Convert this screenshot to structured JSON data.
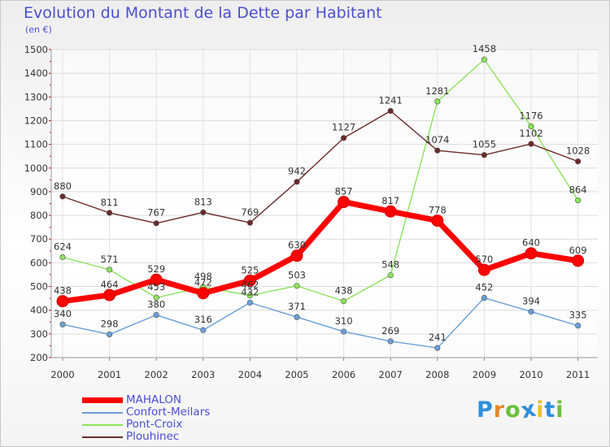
{
  "chart_data": {
    "type": "line",
    "title": "Evolution du Montant de la Dette par Habitant",
    "subtitle": "(en €)",
    "x": [
      "2000",
      "2001",
      "2002",
      "2003",
      "2004",
      "2005",
      "2006",
      "2007",
      "2008",
      "2009",
      "2010",
      "2011"
    ],
    "ylim": [
      200,
      1500
    ],
    "yticks": [
      200,
      300,
      400,
      500,
      600,
      700,
      800,
      900,
      1000,
      1100,
      1200,
      1300,
      1400,
      1500
    ],
    "grid": true,
    "legend": "bottom-left",
    "series": [
      {
        "name": "MAHALON",
        "color": "#ff0000",
        "values": [
          438,
          464,
          529,
          472,
          525,
          630,
          857,
          817,
          778,
          570,
          640,
          609
        ]
      },
      {
        "name": "Confort-Meilars",
        "color": "#6a9fd6",
        "values": [
          340,
          298,
          380,
          316,
          432,
          371,
          310,
          269,
          241,
          452,
          394,
          335
        ]
      },
      {
        "name": "Pont-Croix",
        "color": "#8be35a",
        "values": [
          624,
          571,
          453,
          498,
          462,
          503,
          438,
          548,
          1281,
          1458,
          1176,
          864
        ]
      },
      {
        "name": "Plouhinec",
        "color": "#6b2a2a",
        "values": [
          880,
          811,
          767,
          813,
          769,
          942,
          1127,
          1241,
          1074,
          1055,
          1102,
          1028
        ]
      }
    ]
  },
  "brand": {
    "letters": [
      "P",
      "r",
      "o",
      "x",
      "i",
      "t",
      "i"
    ],
    "colors": [
      "#2f8fd8",
      "#e8892a",
      "#6cbf3a",
      "#2f8fd8",
      "#e8c12a",
      "#2f8fd8",
      "#6cbf3a"
    ]
  }
}
